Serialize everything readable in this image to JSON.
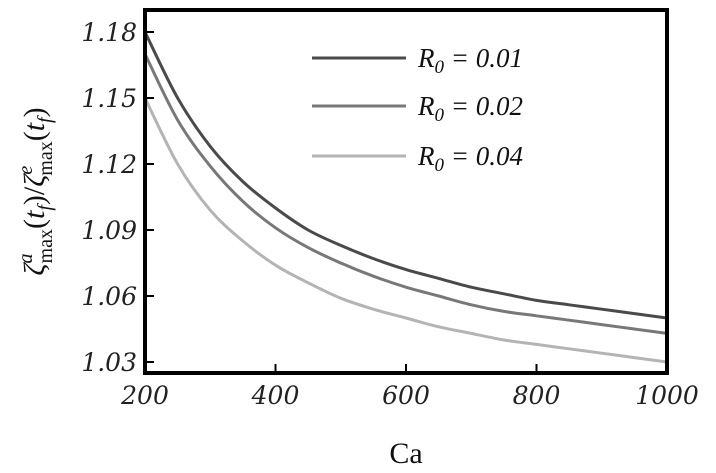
{
  "chart_data": {
    "type": "line",
    "xlabel": "Ca",
    "ylabel": "ζ^a_max(t_f)/ζ^e_max(t_f)",
    "xlim": [
      200,
      1000
    ],
    "ylim": [
      1.025,
      1.19
    ],
    "xticks": [
      200,
      400,
      600,
      800,
      1000
    ],
    "yticks": [
      1.03,
      1.06,
      1.09,
      1.12,
      1.15,
      1.18
    ],
    "xtick_labels": [
      "200",
      "400",
      "600",
      "800",
      "1000"
    ],
    "ytick_labels": [
      "1.03",
      "1.06",
      "1.09",
      "1.12",
      "1.15",
      "1.18"
    ],
    "grid": false,
    "legend_position": "top-right",
    "series": [
      {
        "name": "R0 = 0.01",
        "label_parts": {
          "symbol": "R",
          "sub": "0",
          "rest": " = 0.01"
        },
        "color": "#4a4a4a",
        "x": [
          200,
          250,
          300,
          350,
          400,
          450,
          500,
          550,
          600,
          650,
          700,
          750,
          800,
          850,
          900,
          950,
          1000
        ],
        "y": [
          1.18,
          1.15,
          1.128,
          1.112,
          1.1,
          1.09,
          1.083,
          1.077,
          1.072,
          1.068,
          1.064,
          1.061,
          1.058,
          1.056,
          1.054,
          1.052,
          1.05
        ]
      },
      {
        "name": "R0 = 0.02",
        "label_parts": {
          "symbol": "R",
          "sub": "0",
          "rest": " = 0.02"
        },
        "color": "#787878",
        "x": [
          200,
          250,
          300,
          350,
          400,
          450,
          500,
          550,
          600,
          650,
          700,
          750,
          800,
          850,
          900,
          950,
          1000
        ],
        "y": [
          1.17,
          1.14,
          1.119,
          1.103,
          1.091,
          1.082,
          1.075,
          1.069,
          1.064,
          1.06,
          1.056,
          1.053,
          1.051,
          1.049,
          1.047,
          1.045,
          1.043
        ]
      },
      {
        "name": "R0 = 0.04",
        "label_parts": {
          "symbol": "R",
          "sub": "0",
          "rest": " = 0.04"
        },
        "color": "#b4b4b4",
        "x": [
          200,
          250,
          300,
          350,
          400,
          450,
          500,
          550,
          600,
          650,
          700,
          750,
          800,
          850,
          900,
          950,
          1000
        ],
        "y": [
          1.15,
          1.12,
          1.099,
          1.085,
          1.074,
          1.066,
          1.059,
          1.054,
          1.05,
          1.046,
          1.043,
          1.04,
          1.038,
          1.036,
          1.034,
          1.032,
          1.03
        ]
      }
    ]
  }
}
